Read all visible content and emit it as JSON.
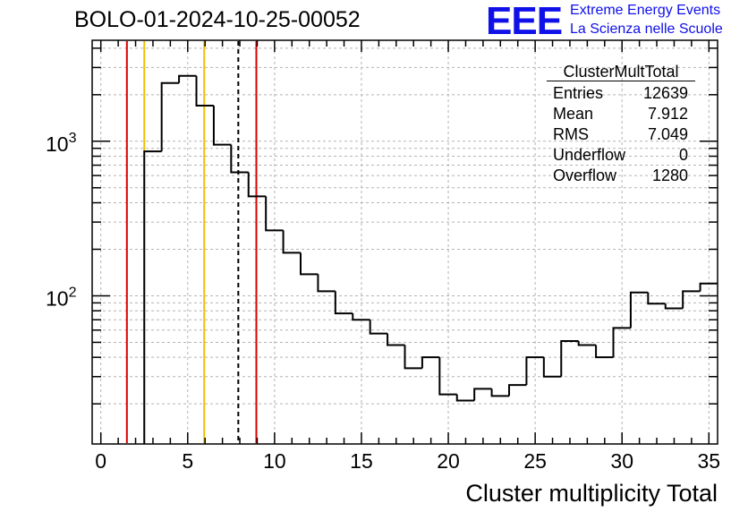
{
  "title": "BOLO-01-2024-10-25-00052",
  "logo": {
    "mark": "EEE",
    "line1": "Extreme Energy Events",
    "line2": "La Scienza nelle Scuole",
    "color": "#1010e8"
  },
  "stats": {
    "name": "ClusterMultTotal",
    "rows": [
      {
        "label": "Entries",
        "value": "12639"
      },
      {
        "label": "Mean",
        "value": "7.912"
      },
      {
        "label": "RMS",
        "value": "7.049"
      },
      {
        "label": "Underflow",
        "value": "0"
      },
      {
        "label": "Overflow",
        "value": "1280"
      }
    ]
  },
  "chart_data": {
    "type": "histogram",
    "xlabel": "Cluster multiplicity Total",
    "ylabel": "",
    "xlim": [
      -0.5,
      35.5
    ],
    "ylim": [
      11,
      4500
    ],
    "yscale": "log",
    "grid": true,
    "x_ticks": [
      0,
      5,
      10,
      15,
      20,
      25,
      30,
      35
    ],
    "y_tick_labels": [
      {
        "value": 1000,
        "base": "10",
        "exp": "3"
      },
      {
        "value": 100,
        "base": "10",
        "exp": "2"
      }
    ],
    "bin_width": 1,
    "bins": [
      {
        "lo": 2.5,
        "hi": 3.5,
        "y": 860
      },
      {
        "lo": 3.5,
        "hi": 4.5,
        "y": 2380
      },
      {
        "lo": 4.5,
        "hi": 5.5,
        "y": 2650
      },
      {
        "lo": 5.5,
        "hi": 6.5,
        "y": 1700
      },
      {
        "lo": 6.5,
        "hi": 7.5,
        "y": 950
      },
      {
        "lo": 7.5,
        "hi": 8.5,
        "y": 630
      },
      {
        "lo": 8.5,
        "hi": 9.5,
        "y": 440
      },
      {
        "lo": 9.5,
        "hi": 10.5,
        "y": 265
      },
      {
        "lo": 10.5,
        "hi": 11.5,
        "y": 190
      },
      {
        "lo": 11.5,
        "hi": 12.5,
        "y": 138
      },
      {
        "lo": 12.5,
        "hi": 13.5,
        "y": 107
      },
      {
        "lo": 13.5,
        "hi": 14.5,
        "y": 77
      },
      {
        "lo": 14.5,
        "hi": 15.5,
        "y": 70
      },
      {
        "lo": 15.5,
        "hi": 16.5,
        "y": 57
      },
      {
        "lo": 16.5,
        "hi": 17.5,
        "y": 48
      },
      {
        "lo": 17.5,
        "hi": 18.5,
        "y": 34
      },
      {
        "lo": 18.5,
        "hi": 19.5,
        "y": 40
      },
      {
        "lo": 19.5,
        "hi": 20.5,
        "y": 23
      },
      {
        "lo": 20.5,
        "hi": 21.5,
        "y": 21
      },
      {
        "lo": 21.5,
        "hi": 22.5,
        "y": 25
      },
      {
        "lo": 22.5,
        "hi": 23.5,
        "y": 22.5
      },
      {
        "lo": 23.5,
        "hi": 24.5,
        "y": 26.5
      },
      {
        "lo": 24.5,
        "hi": 25.5,
        "y": 40
      },
      {
        "lo": 25.5,
        "hi": 26.5,
        "y": 30
      },
      {
        "lo": 26.5,
        "hi": 27.5,
        "y": 51
      },
      {
        "lo": 27.5,
        "hi": 28.5,
        "y": 48
      },
      {
        "lo": 28.5,
        "hi": 29.5,
        "y": 40
      },
      {
        "lo": 29.5,
        "hi": 30.5,
        "y": 62
      },
      {
        "lo": 30.5,
        "hi": 31.5,
        "y": 105
      },
      {
        "lo": 31.5,
        "hi": 32.5,
        "y": 89
      },
      {
        "lo": 32.5,
        "hi": 33.5,
        "y": 83
      },
      {
        "lo": 33.5,
        "hi": 34.5,
        "y": 107
      },
      {
        "lo": 34.5,
        "hi": 35.5,
        "y": 120
      }
    ],
    "vlines": [
      {
        "x": 1.5,
        "color": "#dd0000",
        "style": "solid"
      },
      {
        "x": 2.5,
        "color": "#f0c000",
        "style": "solid"
      },
      {
        "x": 5.95,
        "color": "#f0c000",
        "style": "solid"
      },
      {
        "x": 7.912,
        "color": "#000000",
        "style": "dashed"
      },
      {
        "x": 8.95,
        "color": "#dd0000",
        "style": "solid"
      }
    ]
  }
}
